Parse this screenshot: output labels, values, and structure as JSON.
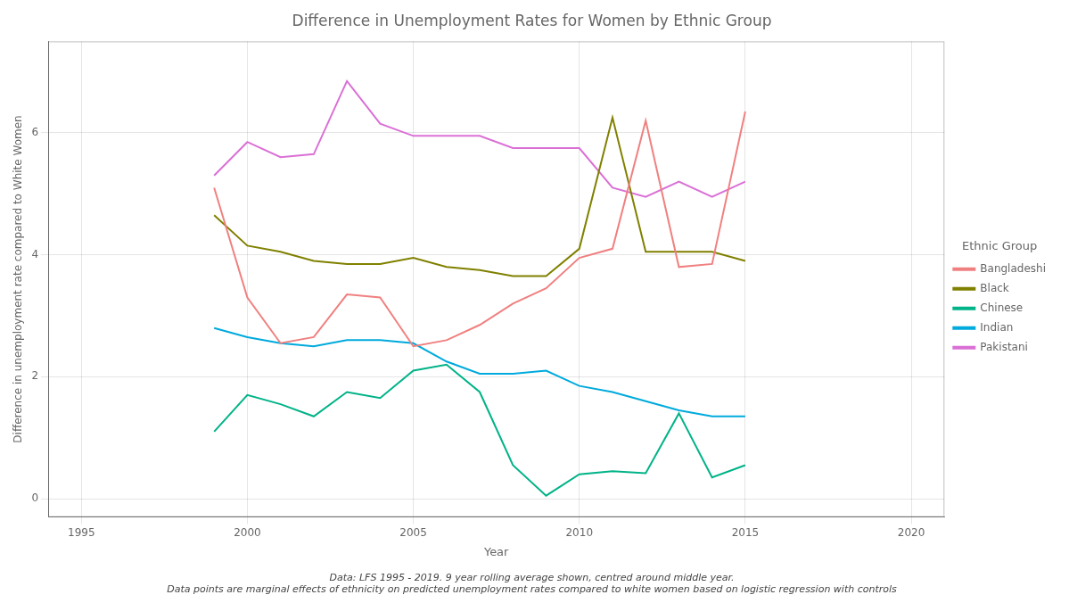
{
  "chart_data": {
    "type": "line",
    "title": "Difference in Unemployment Rates for Women by Ethnic Group",
    "x_label": "Year",
    "y_label": "Difference in unemployment rate compared to White Women",
    "caption": [
      "Data: LFS 1995 - 2019. 9 year rolling average shown, centred around middle year.",
      "Data points are marginal effects of ethnicity on predicted unemployment rates compared to white women based on logistic regression with controls"
    ],
    "legend": "right",
    "legend_title": "Ethnic Group",
    "grid": true,
    "xlim": [
      1994,
      2021
    ],
    "ylim": [
      -0.3,
      7.5
    ],
    "xticks": [
      1995,
      2000,
      2005,
      2010,
      2015,
      2020
    ],
    "yticks": [
      0,
      2,
      4,
      6
    ],
    "x": [
      1999,
      2000,
      2001,
      2002,
      2003,
      2004,
      2005,
      2006,
      2007,
      2008,
      2009,
      2010,
      2011,
      2012,
      2013,
      2014,
      2015
    ],
    "series": [
      {
        "name": "Bangladeshi",
        "color": "#f08080",
        "values": [
          5.1,
          3.3,
          2.55,
          2.65,
          3.35,
          3.3,
          2.5,
          2.6,
          2.85,
          3.2,
          3.45,
          3.95,
          4.1,
          6.2,
          3.8,
          3.85,
          6.35
        ]
      },
      {
        "name": "Black",
        "color": "#808000",
        "values": [
          4.65,
          4.15,
          4.05,
          3.9,
          3.85,
          3.85,
          3.95,
          3.8,
          3.75,
          3.65,
          3.65,
          4.1,
          6.25,
          4.05,
          4.05,
          4.05,
          3.9
        ]
      },
      {
        "name": "Chinese",
        "color": "#00b388",
        "values": [
          1.1,
          1.7,
          1.55,
          1.35,
          1.75,
          1.65,
          2.1,
          2.2,
          1.75,
          0.55,
          0.05,
          0.4,
          0.45,
          0.42,
          1.4,
          0.35,
          0.55
        ]
      },
      {
        "name": "Indian",
        "color": "#00aadd",
        "values": [
          2.8,
          2.65,
          2.55,
          2.5,
          2.6,
          2.6,
          2.55,
          2.25,
          2.05,
          2.05,
          2.1,
          1.85,
          1.75,
          1.6,
          1.45,
          1.35,
          1.35
        ]
      },
      {
        "name": "Pakistani",
        "color": "#da70d6",
        "values": [
          5.3,
          5.85,
          5.6,
          5.65,
          6.85,
          6.15,
          5.95,
          5.95,
          5.95,
          5.75,
          5.75,
          5.75,
          5.1,
          4.95,
          5.2,
          4.95,
          5.2
        ]
      }
    ]
  }
}
